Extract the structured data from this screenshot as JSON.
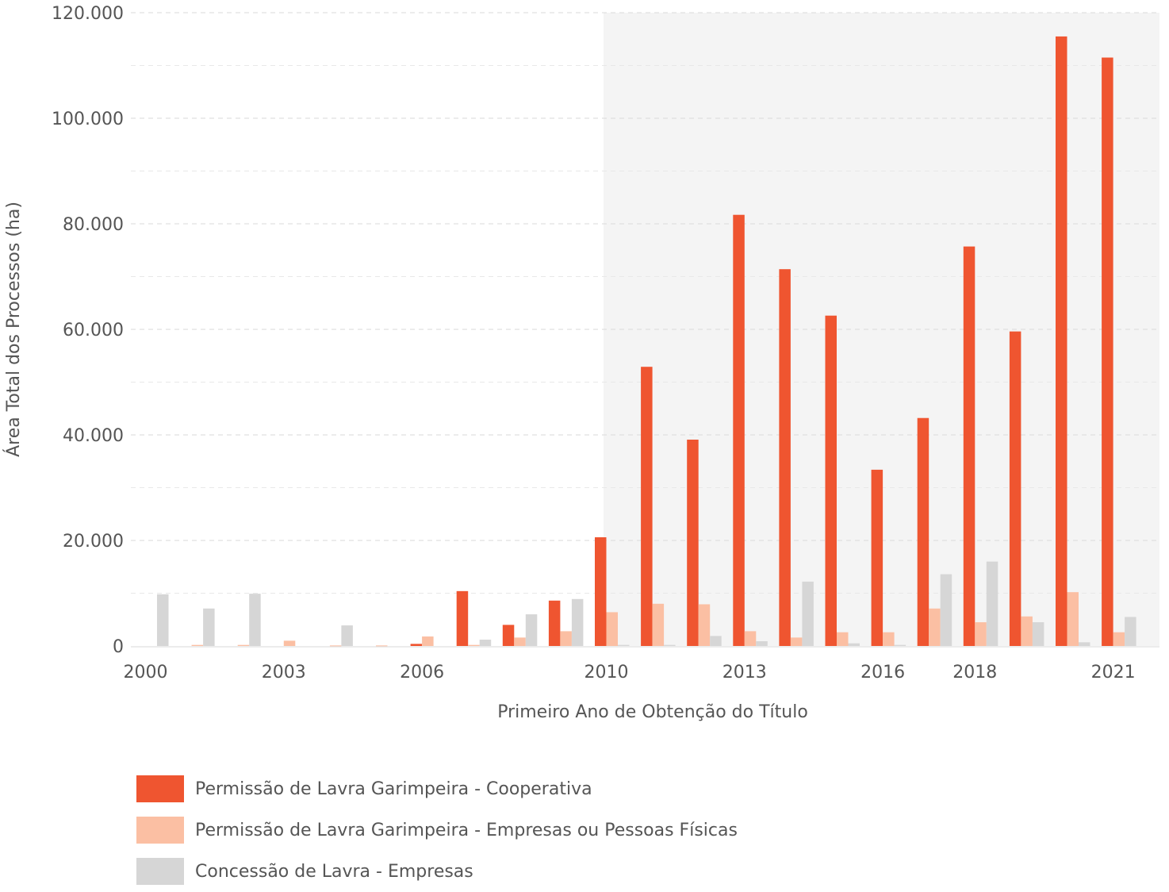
{
  "chart_data": {
    "type": "bar",
    "xlabel": "Primeiro Ano de Obtenção do Título",
    "ylabel": "Área Total dos Processos (ha)",
    "ylim": [
      0,
      120000
    ],
    "yticks": [
      0,
      20000,
      40000,
      60000,
      80000,
      100000,
      120000
    ],
    "ytick_labels": [
      "0",
      "20.000",
      "40.000",
      "60.000",
      "80.000",
      "100.000",
      "120.000"
    ],
    "categories": [
      "2000",
      "2001",
      "2002",
      "2003",
      "2004",
      "2005",
      "2006",
      "2007",
      "2008",
      "2009",
      "2010",
      "2011",
      "2012",
      "2013",
      "2014",
      "2015",
      "2016",
      "2017",
      "2018",
      "2019",
      "2020",
      "2021"
    ],
    "xtick_labels": {
      "2000": "2000",
      "2003": "2003",
      "2006": "2006",
      "2010": "2010",
      "2013": "2013",
      "2016": "2016",
      "2018": "2018",
      "2021": "2021"
    },
    "highlight_range": [
      "2010",
      "2021"
    ],
    "grid": true,
    "legend_position": "bottom",
    "series": [
      {
        "name": "Permissão de Lavra Garimpeira - Cooperativa",
        "color": "#EF5530",
        "values": [
          0,
          0,
          0,
          0,
          0,
          0,
          400,
          10400,
          4000,
          8600,
          20600,
          52900,
          39100,
          81700,
          71400,
          62600,
          33400,
          43200,
          75700,
          59600,
          115500,
          111500
        ]
      },
      {
        "name": "Permissão de Lavra Garimpeira - Empresas ou Pessoas Físicas",
        "color": "#FBBFA3",
        "values": [
          0,
          200,
          200,
          1000,
          100,
          100,
          1800,
          200,
          1600,
          2800,
          6400,
          8000,
          7900,
          2800,
          1600,
          2600,
          2600,
          7100,
          4500,
          5600,
          10200,
          2600
        ]
      },
      {
        "name": "Concessão de Lavra - Empresas",
        "color": "#D6D6D6",
        "values": [
          9800,
          7100,
          9900,
          0,
          3900,
          0,
          0,
          1200,
          6000,
          8900,
          200,
          200,
          1900,
          900,
          12200,
          500,
          200,
          13600,
          16000,
          4500,
          700,
          5500
        ]
      }
    ]
  }
}
